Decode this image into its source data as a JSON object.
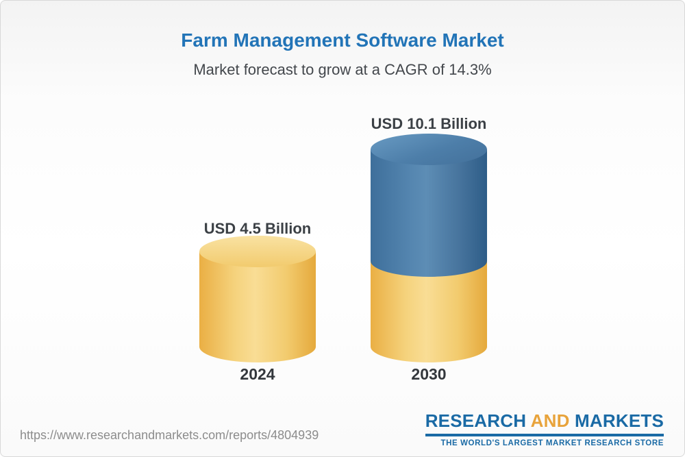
{
  "header": {
    "title": "Farm Management Software Market",
    "subtitle": "Market forecast to grow at a CAGR of 14.3%"
  },
  "chart_data": {
    "type": "bar",
    "bar_style": "cylinder",
    "title": "Farm Management Software Market",
    "subtitle": "Market forecast to grow at a CAGR of 14.3%",
    "categories": [
      "2024",
      "2030"
    ],
    "values": [
      4.5,
      10.1
    ],
    "value_labels": [
      "USD 4.5 Billion",
      "USD 10.1 Billion"
    ],
    "unit": "USD Billion",
    "cagr_percent": 14.3,
    "legend_position": "none",
    "grid": false,
    "colors": {
      "base_segment": "#F2CB6E",
      "growth_segment": "#44779F",
      "title_accent": "#2274B7"
    },
    "notes": "2030 bar shows the 2024-equivalent base in gold with incremental growth shown in blue on top"
  },
  "footer": {
    "url": "https://www.researchandmarkets.com/reports/4804939",
    "logo": {
      "research": "RESEARCH",
      "and": "AND",
      "markets": "MARKETS",
      "tagline": "THE WORLD'S LARGEST MARKET RESEARCH STORE"
    }
  }
}
